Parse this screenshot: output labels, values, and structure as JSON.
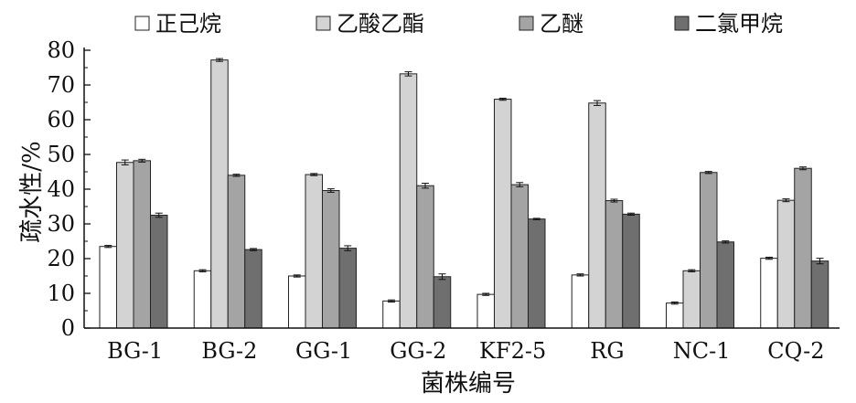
{
  "chart_data": {
    "type": "bar",
    "categories": [
      "BG-1",
      "BG-2",
      "GG-1",
      "GG-2",
      "KF2-5",
      "RG",
      "NC-1",
      "CQ-2"
    ],
    "series": [
      {
        "name": "正己烷",
        "color": "#ffffff",
        "values": [
          23.5,
          16.5,
          15.0,
          7.8,
          9.7,
          15.3,
          7.2,
          20.1
        ],
        "errors": [
          0.3,
          0.3,
          0.3,
          0.3,
          0.3,
          0.3,
          0.3,
          0.3
        ]
      },
      {
        "name": "乙酸乙酯",
        "color": "#d3d3d3",
        "values": [
          47.7,
          77.2,
          44.2,
          73.2,
          65.9,
          64.8,
          16.5,
          36.8
        ],
        "errors": [
          0.7,
          0.4,
          0.3,
          0.6,
          0.3,
          0.7,
          0.3,
          0.4
        ]
      },
      {
        "name": "乙醚",
        "color": "#a4a4a4",
        "values": [
          48.2,
          44.0,
          39.6,
          41.0,
          41.3,
          36.7,
          44.8,
          46.0
        ],
        "errors": [
          0.4,
          0.3,
          0.5,
          0.7,
          0.6,
          0.4,
          0.3,
          0.4
        ]
      },
      {
        "name": "二氯甲烷",
        "color": "#6f6f6f",
        "values": [
          32.5,
          22.6,
          23.0,
          14.8,
          31.4,
          32.8,
          24.8,
          19.3
        ],
        "errors": [
          0.6,
          0.3,
          0.7,
          0.8,
          0.2,
          0.3,
          0.3,
          0.8
        ]
      }
    ],
    "ylabel": "疏水性/%",
    "xlabel": "菌株编号",
    "ylim": [
      0,
      80
    ],
    "yticks": [
      0,
      10,
      20,
      30,
      40,
      50,
      60,
      70,
      80
    ],
    "grid": false,
    "legend_position": "top"
  }
}
